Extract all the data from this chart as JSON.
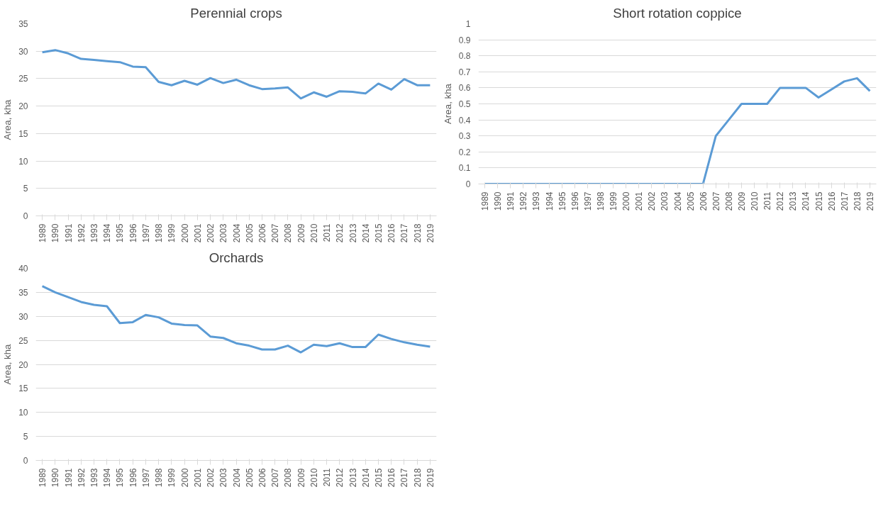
{
  "chart_data": [
    {
      "type": "line",
      "title": "Perennial crops",
      "ylabel": "Area, kha",
      "categories": [
        "1989",
        "1990",
        "1991",
        "1992",
        "1993",
        "1994",
        "1995",
        "1996",
        "1997",
        "1998",
        "1999",
        "2000",
        "2001",
        "2002",
        "2003",
        "2004",
        "2005",
        "2006",
        "2007",
        "2008",
        "2009",
        "2010",
        "2011",
        "2012",
        "2013",
        "2014",
        "2015",
        "2016",
        "2017",
        "2018",
        "2019"
      ],
      "series": [
        {
          "color": "#5b9bd5",
          "values": [
            29.8,
            30.2,
            29.6,
            28.6,
            28.4,
            28.2,
            28.0,
            27.2,
            27.1,
            24.4,
            23.8,
            24.6,
            23.9,
            25.1,
            24.2,
            24.8,
            23.8,
            23.1,
            23.2,
            23.4,
            21.4,
            22.5,
            21.7,
            22.7,
            22.6,
            22.3,
            24.1,
            23.0,
            24.9,
            23.8,
            23.8
          ]
        }
      ],
      "ylim": [
        0,
        35
      ],
      "yticks": [
        0,
        5,
        10,
        15,
        20,
        25,
        30,
        35
      ],
      "grid": "y"
    },
    {
      "type": "line",
      "title": "Short rotation coppice",
      "ylabel": "Area, kha",
      "categories": [
        "1989",
        "1990",
        "1991",
        "1992",
        "1993",
        "1994",
        "1995",
        "1996",
        "1997",
        "1998",
        "1999",
        "2000",
        "2001",
        "2002",
        "2003",
        "2004",
        "2005",
        "2006",
        "2007",
        "2008",
        "2009",
        "2010",
        "2011",
        "2012",
        "2013",
        "2014",
        "2015",
        "2016",
        "2017",
        "2018",
        "2019"
      ],
      "series": [
        {
          "color": "#5b9bd5",
          "values": [
            0,
            0,
            0,
            0,
            0,
            0,
            0,
            0,
            0,
            0,
            0,
            0,
            0,
            0,
            0,
            0,
            0,
            0,
            0.3,
            0.4,
            0.5,
            0.5,
            0.5,
            0.6,
            0.6,
            0.6,
            0.54,
            0.59,
            0.64,
            0.66,
            0.58
          ]
        }
      ],
      "ylim": [
        0,
        1
      ],
      "yticks": [
        0,
        {
          "value": 0.1,
          "label": "0.1"
        },
        {
          "value": 0.2,
          "label": "0.2"
        },
        {
          "value": 0.3,
          "label": "0.3"
        },
        {
          "value": 0.4,
          "label": "0.4"
        },
        {
          "value": 0.5,
          "label": "0.5"
        },
        {
          "value": 0.6,
          "label": "0.6"
        },
        {
          "value": 0.7,
          "label": "0.7"
        },
        {
          "value": 0.8,
          "label": "0.8"
        },
        {
          "value": 0.9,
          "label": "0.9"
        },
        1
      ],
      "grid": "y"
    },
    {
      "type": "line",
      "title": "Orchards",
      "ylabel": "Area, kha",
      "categories": [
        "1989",
        "1990",
        "1991",
        "1992",
        "1993",
        "1994",
        "1995",
        "1996",
        "1997",
        "1998",
        "1999",
        "2000",
        "2001",
        "2002",
        "2003",
        "2004",
        "2005",
        "2006",
        "2007",
        "2008",
        "2009",
        "2010",
        "2011",
        "2012",
        "2013",
        "2014",
        "2015",
        "2016",
        "2017",
        "2018",
        "2019"
      ],
      "series": [
        {
          "color": "#5b9bd5",
          "values": [
            36.3,
            35.0,
            34.0,
            33.0,
            32.4,
            32.1,
            28.6,
            28.8,
            30.3,
            29.8,
            28.5,
            28.2,
            28.1,
            25.8,
            25.5,
            24.4,
            23.9,
            23.1,
            23.1,
            23.9,
            22.5,
            24.1,
            23.8,
            24.4,
            23.6,
            23.6,
            26.2,
            25.3,
            24.6,
            24.1,
            23.7
          ]
        }
      ],
      "ylim": [
        0,
        40
      ],
      "yticks": [
        0,
        5,
        10,
        15,
        20,
        25,
        30,
        35,
        40
      ],
      "grid": "y"
    }
  ]
}
